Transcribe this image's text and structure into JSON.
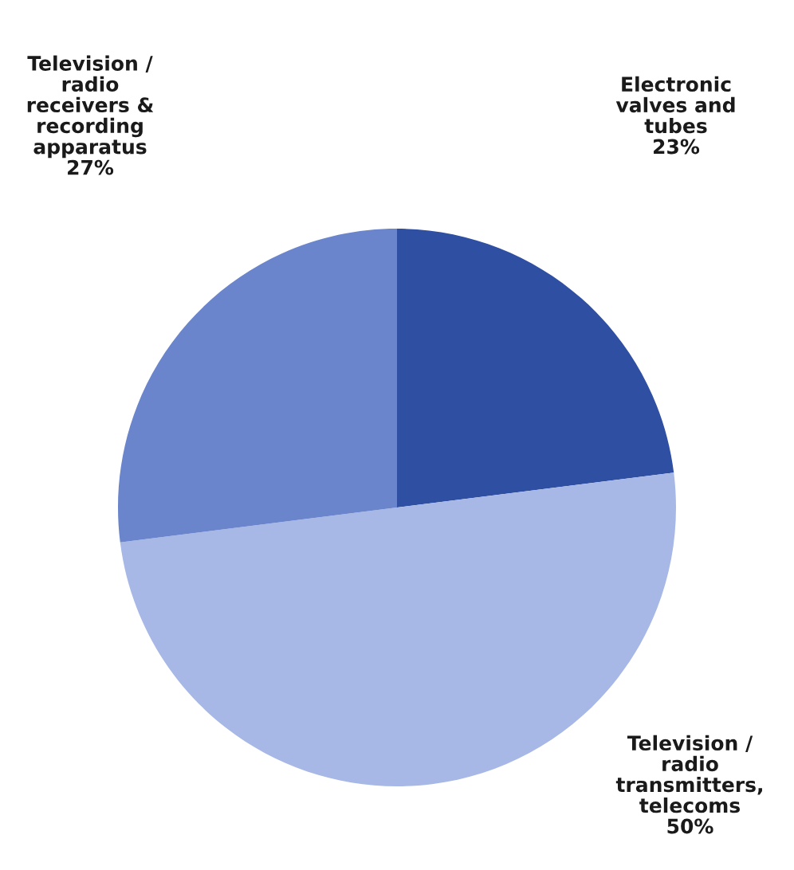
{
  "chart_data": {
    "type": "pie",
    "categories": [
      "Electronic\nvalves and\ntubes",
      "Television /\nradio\ntransmitters,\ntelecoms",
      "Television /\nradio\nreceivers &\nrecording\napparatus"
    ],
    "values": [
      23,
      50,
      27
    ],
    "value_labels": [
      "23%",
      "50%",
      "27%"
    ],
    "colors": [
      "#2f4fa2",
      "#a7b8e6",
      "#6a85cb"
    ]
  }
}
